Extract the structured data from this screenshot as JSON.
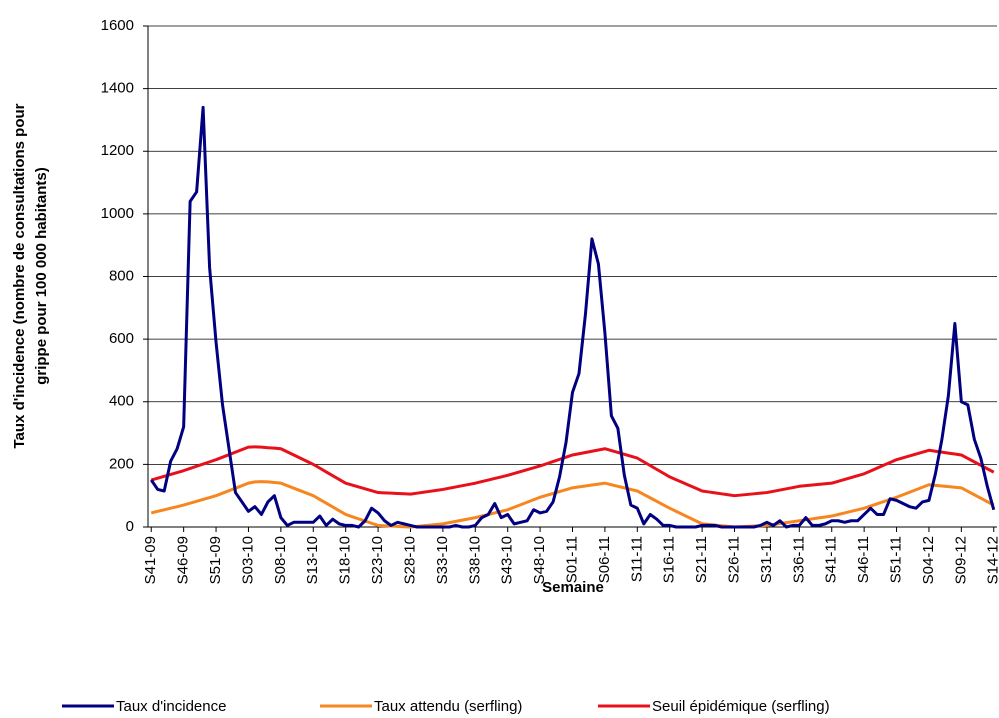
{
  "chart_data": {
    "type": "line",
    "xlabel": "Semaine",
    "ylabel": [
      "Taux d'incidence (nombre de consultations pour",
      "grippe pour 100 000 habitants)"
    ],
    "categories": [
      "S41-09",
      null,
      null,
      null,
      null,
      "S46-09",
      null,
      null,
      null,
      null,
      "S51-09",
      null,
      null,
      null,
      null,
      "S03-10",
      null,
      null,
      null,
      null,
      "S08-10",
      null,
      null,
      null,
      null,
      "S13-10",
      null,
      null,
      null,
      null,
      "S18-10",
      null,
      null,
      null,
      null,
      "S23-10",
      null,
      null,
      null,
      null,
      "S28-10",
      null,
      null,
      null,
      null,
      "S33-10",
      null,
      null,
      null,
      null,
      "S38-10",
      null,
      null,
      null,
      null,
      "S43-10",
      null,
      null,
      null,
      null,
      "S48-10",
      null,
      null,
      null,
      null,
      "S01-11",
      null,
      null,
      null,
      null,
      "S06-11",
      null,
      null,
      null,
      null,
      "S11-11",
      null,
      null,
      null,
      null,
      "S16-11",
      null,
      null,
      null,
      null,
      "S21-11",
      null,
      null,
      null,
      null,
      "S26-11",
      null,
      null,
      null,
      null,
      "S31-11",
      null,
      null,
      null,
      null,
      "S36-11",
      null,
      null,
      null,
      null,
      "S41-11",
      null,
      null,
      null,
      null,
      "S46-11",
      null,
      null,
      null,
      null,
      "S51-11",
      null,
      null,
      null,
      null,
      "S04-12",
      null,
      null,
      null,
      null,
      "S09-12",
      null,
      null,
      null,
      null,
      "S14-12"
    ],
    "series": [
      {
        "name": "Taux d'incidence",
        "color": "#000080",
        "values": [
          150,
          120,
          115,
          210,
          250,
          320,
          1040,
          1070,
          1340,
          830,
          590,
          390,
          250,
          110,
          80,
          50,
          65,
          40,
          80,
          100,
          30,
          5,
          15,
          15,
          15,
          15,
          35,
          5,
          25,
          10,
          5,
          5,
          0,
          20,
          60,
          45,
          20,
          5,
          15,
          10,
          5,
          0,
          0,
          0,
          0,
          0,
          0,
          5,
          0,
          0,
          5,
          30,
          40,
          75,
          30,
          40,
          10,
          15,
          20,
          55,
          45,
          50,
          80,
          160,
          270,
          430,
          490,
          680,
          920,
          840,
          620,
          355,
          315,
          165,
          70,
          60,
          10,
          40,
          25,
          5,
          5,
          0,
          0,
          0,
          0,
          5,
          5,
          5,
          0,
          0,
          0,
          0,
          0,
          0,
          5,
          15,
          5,
          20,
          0,
          5,
          5,
          30,
          5,
          5,
          10,
          20,
          20,
          15,
          20,
          20,
          40,
          60,
          40,
          40,
          90,
          85,
          75,
          65,
          60,
          80,
          85,
          170,
          280,
          420,
          650,
          400,
          390,
          280,
          220,
          130,
          55
        ]
      },
      {
        "name": "Taux attendu (serfling)",
        "color": "#f7861f",
        "values": [
          45,
          50,
          55,
          60,
          65,
          70,
          76,
          82,
          88,
          94,
          100,
          108,
          116,
          124,
          132,
          140,
          144,
          145,
          144,
          142,
          140,
          132,
          124,
          116,
          108,
          100,
          88,
          76,
          64,
          52,
          40,
          33,
          26,
          19,
          12,
          5,
          4,
          3,
          2,
          1,
          0,
          2,
          4,
          6,
          8,
          10,
          14,
          18,
          22,
          26,
          30,
          35,
          40,
          45,
          50,
          55,
          63,
          71,
          79,
          87,
          95,
          101,
          107,
          113,
          119,
          125,
          128,
          131,
          134,
          137,
          140,
          135,
          130,
          125,
          120,
          115,
          104,
          93,
          82,
          71,
          60,
          50,
          40,
          30,
          20,
          10,
          8,
          6,
          4,
          2,
          0,
          1,
          2,
          3,
          4,
          5,
          8,
          11,
          14,
          17,
          20,
          23,
          26,
          29,
          32,
          35,
          40,
          45,
          50,
          55,
          60,
          67,
          74,
          81,
          88,
          95,
          103,
          111,
          119,
          127,
          135,
          133,
          131,
          129,
          127,
          125,
          114,
          103,
          92,
          81,
          70
        ]
      },
      {
        "name": "Seuil épidémique (serfling)",
        "color": "#e8101a",
        "values": [
          150,
          156,
          162,
          168,
          174,
          180,
          187,
          194,
          201,
          208,
          215,
          223,
          231,
          239,
          247,
          255,
          256,
          255,
          253,
          252,
          250,
          240,
          230,
          220,
          210,
          200,
          188,
          176,
          164,
          152,
          140,
          134,
          128,
          122,
          116,
          110,
          109,
          108,
          107,
          106,
          105,
          108,
          111,
          114,
          117,
          120,
          124,
          128,
          132,
          136,
          140,
          145,
          150,
          155,
          160,
          165,
          171,
          177,
          183,
          189,
          195,
          202,
          209,
          216,
          223,
          230,
          234,
          238,
          242,
          246,
          250,
          244,
          238,
          232,
          226,
          220,
          208,
          196,
          184,
          172,
          160,
          151,
          142,
          133,
          124,
          115,
          112,
          109,
          106,
          103,
          100,
          102,
          104,
          106,
          108,
          110,
          114,
          118,
          122,
          126,
          130,
          132,
          134,
          136,
          138,
          140,
          146,
          152,
          158,
          164,
          170,
          179,
          188,
          197,
          206,
          215,
          221,
          227,
          233,
          239,
          245,
          242,
          239,
          236,
          233,
          230,
          219,
          208,
          197,
          186,
          175
        ]
      }
    ],
    "ylim": [
      0,
      1600
    ],
    "yticks": [
      0,
      200,
      400,
      600,
      800,
      1000,
      1200,
      1400,
      1600
    ],
    "grid": true
  }
}
